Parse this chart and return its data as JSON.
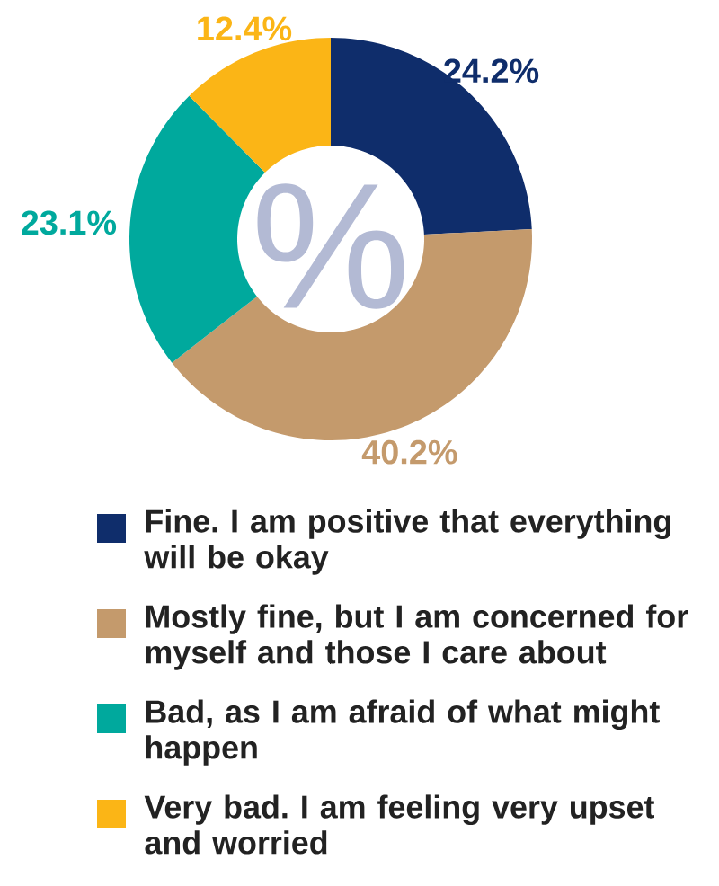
{
  "chart_data": {
    "type": "donut",
    "categories": [
      "Fine. I am positive that everything will be okay",
      "Mostly fine, but I am concerned for myself and those I care about",
      "Bad, as I am afraid of what might happen",
      "Very bad. I am feeling very upset and worried"
    ],
    "values": [
      24.2,
      40.2,
      23.1,
      12.4
    ],
    "value_labels": [
      "24.2%",
      "40.2%",
      "23.1%",
      "12.4%"
    ],
    "colors": [
      "#0f2d6b",
      "#c49a6c",
      "#00a99d",
      "#fbb516"
    ],
    "annotations": [
      "%"
    ],
    "legend": "bottom"
  }
}
